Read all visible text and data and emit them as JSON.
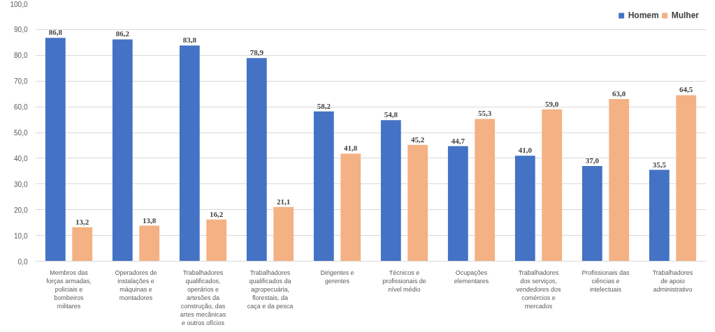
{
  "chart_data": {
    "type": "bar",
    "categories": [
      "Membros das\nforças armadas,\npoliciais e\nbombeiros\nmilitares",
      "Operadores de\ninstalações e\nmáquinas e\nmontadores",
      "Trabalhadores\nqualificados,\noperários e\nartesões da\nconstrução, das\nartes mecânicas\ne outros ofícios",
      "Trabalhadores\nqualificados da\nagropecuária,\nflorestais, da\ncaça e da pesca",
      "Dirigentes e\ngerentes",
      "Técnicos e\nprofissionais de\nnível médio",
      "Ocupações\nelementares",
      "Trabalhadores\ndos serviços,\nvendedores dos\ncomércios e\nmercados",
      "Profissionais das\nciências e\nintelectuais",
      "Trabalhadores\nde apoio\nadministrativo"
    ],
    "series": [
      {
        "name": "Homem",
        "color": "#4472c4",
        "values": [
          86.8,
          86.2,
          83.8,
          78.9,
          58.2,
          54.8,
          44.7,
          41.0,
          37.0,
          35.5
        ],
        "value_labels": [
          "86,8",
          "86,2",
          "83,8",
          "78,9",
          "58,2",
          "54,8",
          "44,7",
          "41,0",
          "37,0",
          "35,5"
        ]
      },
      {
        "name": "Mulher",
        "color": "#f4b183",
        "values": [
          13.2,
          13.8,
          16.2,
          21.1,
          41.8,
          45.2,
          55.3,
          59.0,
          63.0,
          64.5
        ],
        "value_labels": [
          "13,2",
          "13,8",
          "16,2",
          "21,1",
          "41,8",
          "45,2",
          "55,3",
          "59,0",
          "63,0",
          "64,5"
        ]
      }
    ],
    "ylim": [
      0,
      100
    ],
    "yticks": [
      {
        "value": 0,
        "label": "0,0"
      },
      {
        "value": 10,
        "label": "10,0"
      },
      {
        "value": 20,
        "label": "20,0"
      },
      {
        "value": 30,
        "label": "30,0"
      },
      {
        "value": 40,
        "label": "40,0"
      },
      {
        "value": 50,
        "label": "50,0"
      },
      {
        "value": 60,
        "label": "60,0"
      },
      {
        "value": 70,
        "label": "70,0"
      },
      {
        "value": 80,
        "label": "80,0"
      },
      {
        "value": 90,
        "label": "90,0"
      },
      {
        "value": 100,
        "label": "100,0"
      }
    ],
    "grid": "y",
    "legend": "top right"
  }
}
